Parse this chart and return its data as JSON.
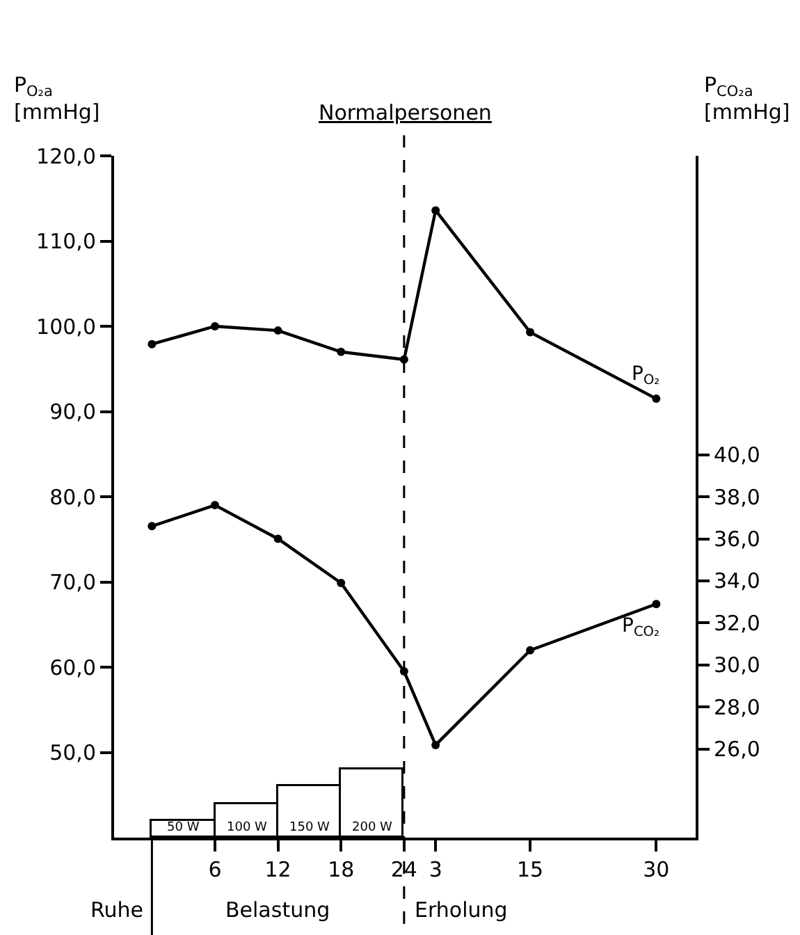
{
  "chart_data": {
    "type": "line",
    "title": "Normalpersonen",
    "ylabel": "P$_{O₂a}$\n[mmHg]",
    "y2label": "P$_{CO₂a}$\n[mmHg]",
    "categories": [
      null,
      null,
      "6",
      null,
      "12",
      null,
      "18",
      null,
      "24",
      "3",
      null,
      null,
      "15",
      null,
      null,
      null,
      "30"
    ],
    "ylim": [
      40,
      120
    ],
    "yticks": [
      {
        "value": 50,
        "label": "50,0"
      },
      {
        "value": 60,
        "label": "60,0"
      },
      {
        "value": 70,
        "label": "70,0"
      },
      {
        "value": 80,
        "label": "80,0"
      },
      {
        "value": 90,
        "label": "90,0"
      },
      {
        "value": 100,
        "label": "100,0"
      },
      {
        "value": 110,
        "label": "110,0"
      },
      {
        "value": 120,
        "label": "120,0"
      }
    ],
    "y2lim": [
      21.8,
      54.2
    ],
    "y2ticks": [
      {
        "value": 26,
        "label": "26,0"
      },
      {
        "value": 28,
        "label": "28,0"
      },
      {
        "value": 30,
        "label": "30,0"
      },
      {
        "value": 32,
        "label": "32,0"
      },
      {
        "value": 34,
        "label": "34,0"
      },
      {
        "value": 36,
        "label": "36,0"
      },
      {
        "value": 38,
        "label": "38,0"
      },
      {
        "value": 40,
        "label": "40,0"
      }
    ],
    "series": [
      {
        "name": "P$_{O₂}$",
        "color": "#000000",
        "values": [
          97.9,
          null,
          100.0,
          null,
          99.5,
          null,
          97.0,
          null,
          96.1,
          113.6,
          null,
          null,
          99.3,
          null,
          null,
          null,
          91.5
        ]
      },
      {
        "name": "P$_{CO₂}$",
        "color": "#000000",
        "axis": "y2",
        "values": [
          36.6,
          null,
          37.6,
          null,
          36.0,
          null,
          33.9,
          null,
          29.7,
          26.2,
          null,
          null,
          30.7,
          null,
          null,
          null,
          32.9
        ]
      },
      {
        "type": "bar",
        "color": "#ffffff",
        "base": [
          null,
          40,
          null,
          40,
          null,
          40,
          null,
          40,
          null,
          null,
          null,
          null,
          null,
          null,
          null,
          null,
          null
        ],
        "values": [
          null,
          1.9,
          null,
          4.0,
          null,
          6.0,
          null,
          8.0,
          null,
          null,
          null,
          null,
          null,
          null,
          null,
          null,
          null
        ]
      }
    ],
    "ref_lines": [
      {
        "axis": "x",
        "value": "24",
        "line_style": "dashed",
        "color": "#000000"
      }
    ],
    "annotations": [
      "50 W",
      "100 W",
      "150 W",
      "200 W",
      "Ruhe",
      "Belastung",
      "Erholung"
    ],
    "marker": "circle",
    "line_style": "solid"
  }
}
